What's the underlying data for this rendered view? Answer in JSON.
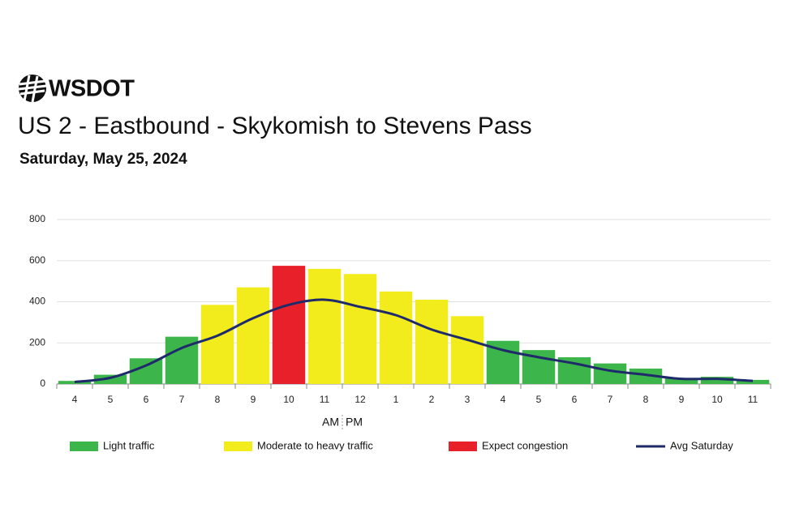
{
  "chart_data": {
    "type": "bar",
    "brand": "WSDOT",
    "title": "US 2 - Eastbound - Skykomish to Stevens Pass",
    "subtitle": "Saturday, May 25, 2024",
    "categories": [
      "4",
      "5",
      "6",
      "7",
      "8",
      "9",
      "10",
      "11",
      "12",
      "1",
      "2",
      "3",
      "4",
      "5",
      "6",
      "7",
      "8",
      "9",
      "10",
      "11"
    ],
    "x_annotations": [
      "AM",
      "PM"
    ],
    "ylim": [
      0,
      800
    ],
    "yticks": [
      0,
      200,
      400,
      600,
      800
    ],
    "grid": true,
    "levels": [
      {
        "name": "Light traffic",
        "color": "#3cb54a"
      },
      {
        "name": "Moderate to heavy traffic",
        "color": "#f2ec1c"
      },
      {
        "name": "Expect congestion",
        "color": "#e8202a"
      }
    ],
    "series": [
      {
        "type": "bar",
        "values": [
          15,
          45,
          125,
          230,
          385,
          470,
          575,
          560,
          535,
          450,
          410,
          330,
          210,
          165,
          130,
          100,
          75,
          30,
          35,
          20
        ],
        "colors": [
          "#3cb54a",
          "#3cb54a",
          "#3cb54a",
          "#3cb54a",
          "#f2ec1c",
          "#f2ec1c",
          "#e8202a",
          "#f2ec1c",
          "#f2ec1c",
          "#f2ec1c",
          "#f2ec1c",
          "#f2ec1c",
          "#3cb54a",
          "#3cb54a",
          "#3cb54a",
          "#3cb54a",
          "#3cb54a",
          "#3cb54a",
          "#3cb54a",
          "#3cb54a"
        ]
      },
      {
        "type": "line",
        "name": "Avg Saturday",
        "color": "#1f2a6b",
        "values": [
          10,
          30,
          90,
          175,
          235,
          320,
          385,
          410,
          375,
          335,
          265,
          215,
          165,
          130,
          100,
          65,
          45,
          25,
          25,
          15
        ]
      }
    ]
  }
}
